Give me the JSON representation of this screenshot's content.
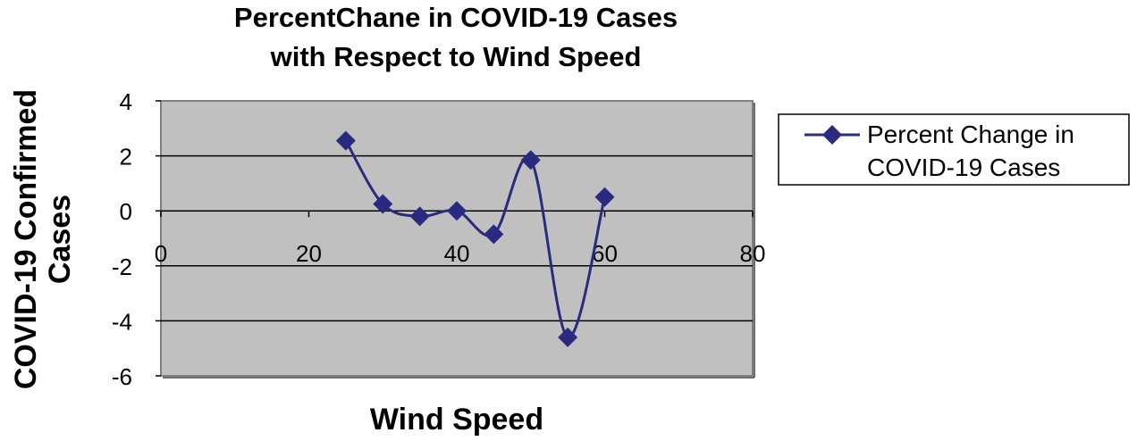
{
  "chart_data": {
    "type": "line",
    "title": [
      "PercentChane in COVID-19 Cases",
      "with Respect to Wind Speed"
    ],
    "xlabel": "Wind Speed",
    "ylabel": [
      "COVID-19 Confirmed",
      "Cases"
    ],
    "xlim": [
      0,
      80
    ],
    "ylim": [
      -6,
      4
    ],
    "x_ticks": [
      0,
      20,
      40,
      60,
      80
    ],
    "y_ticks": [
      -6,
      -4,
      -2,
      0,
      2,
      4
    ],
    "x_tick_labels": [
      "0",
      "20",
      "40",
      "60",
      "80"
    ],
    "y_tick_labels": [
      "-6",
      "-4",
      "-2",
      "0",
      "2",
      "4"
    ],
    "grid": "horizontal",
    "legend_position": "right",
    "series": [
      {
        "name": [
          "Percent Change in",
          "COVID-19 Cases"
        ],
        "x": [
          25,
          30,
          35,
          40,
          45,
          50,
          55,
          60
        ],
        "y": [
          2.55,
          0.25,
          -0.2,
          0.0,
          -0.85,
          1.85,
          -4.6,
          0.5
        ],
        "color": "#2a2a80",
        "marker": "diamond",
        "smooth": true
      }
    ],
    "plot_background": "#c0c0c0"
  }
}
